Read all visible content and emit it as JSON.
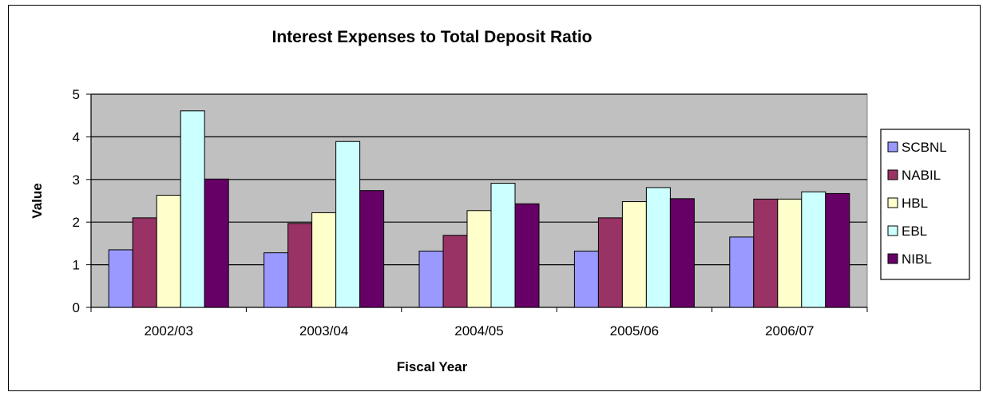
{
  "chart_data": {
    "type": "bar",
    "title": "Interest Expenses to Total Deposit Ratio",
    "xlabel": "Fiscal Year",
    "ylabel": "Value",
    "ylim": [
      0,
      5
    ],
    "yticks": [
      "0",
      "1",
      "2",
      "3",
      "4",
      "5"
    ],
    "grid": true,
    "legend_position": "right",
    "categories": [
      "2002/03",
      "2003/04",
      "2004/05",
      "2005/06",
      "2006/07"
    ],
    "series": [
      {
        "name": "SCBNL",
        "color": "#9999FF",
        "values": [
          1.35,
          1.28,
          1.32,
          1.32,
          1.65
        ]
      },
      {
        "name": "NABIL",
        "color": "#993366",
        "values": [
          2.1,
          1.97,
          1.69,
          2.1,
          2.54
        ]
      },
      {
        "name": "HBL",
        "color": "#FFFFCC",
        "values": [
          2.63,
          2.22,
          2.27,
          2.48,
          2.54
        ]
      },
      {
        "name": "EBL",
        "color": "#CCFFFF",
        "values": [
          4.61,
          3.89,
          2.91,
          2.81,
          2.71
        ]
      },
      {
        "name": "NIBL",
        "color": "#660066",
        "values": [
          3.01,
          2.74,
          2.43,
          2.55,
          2.67
        ]
      }
    ],
    "plot_background": "#C0C0C0"
  }
}
